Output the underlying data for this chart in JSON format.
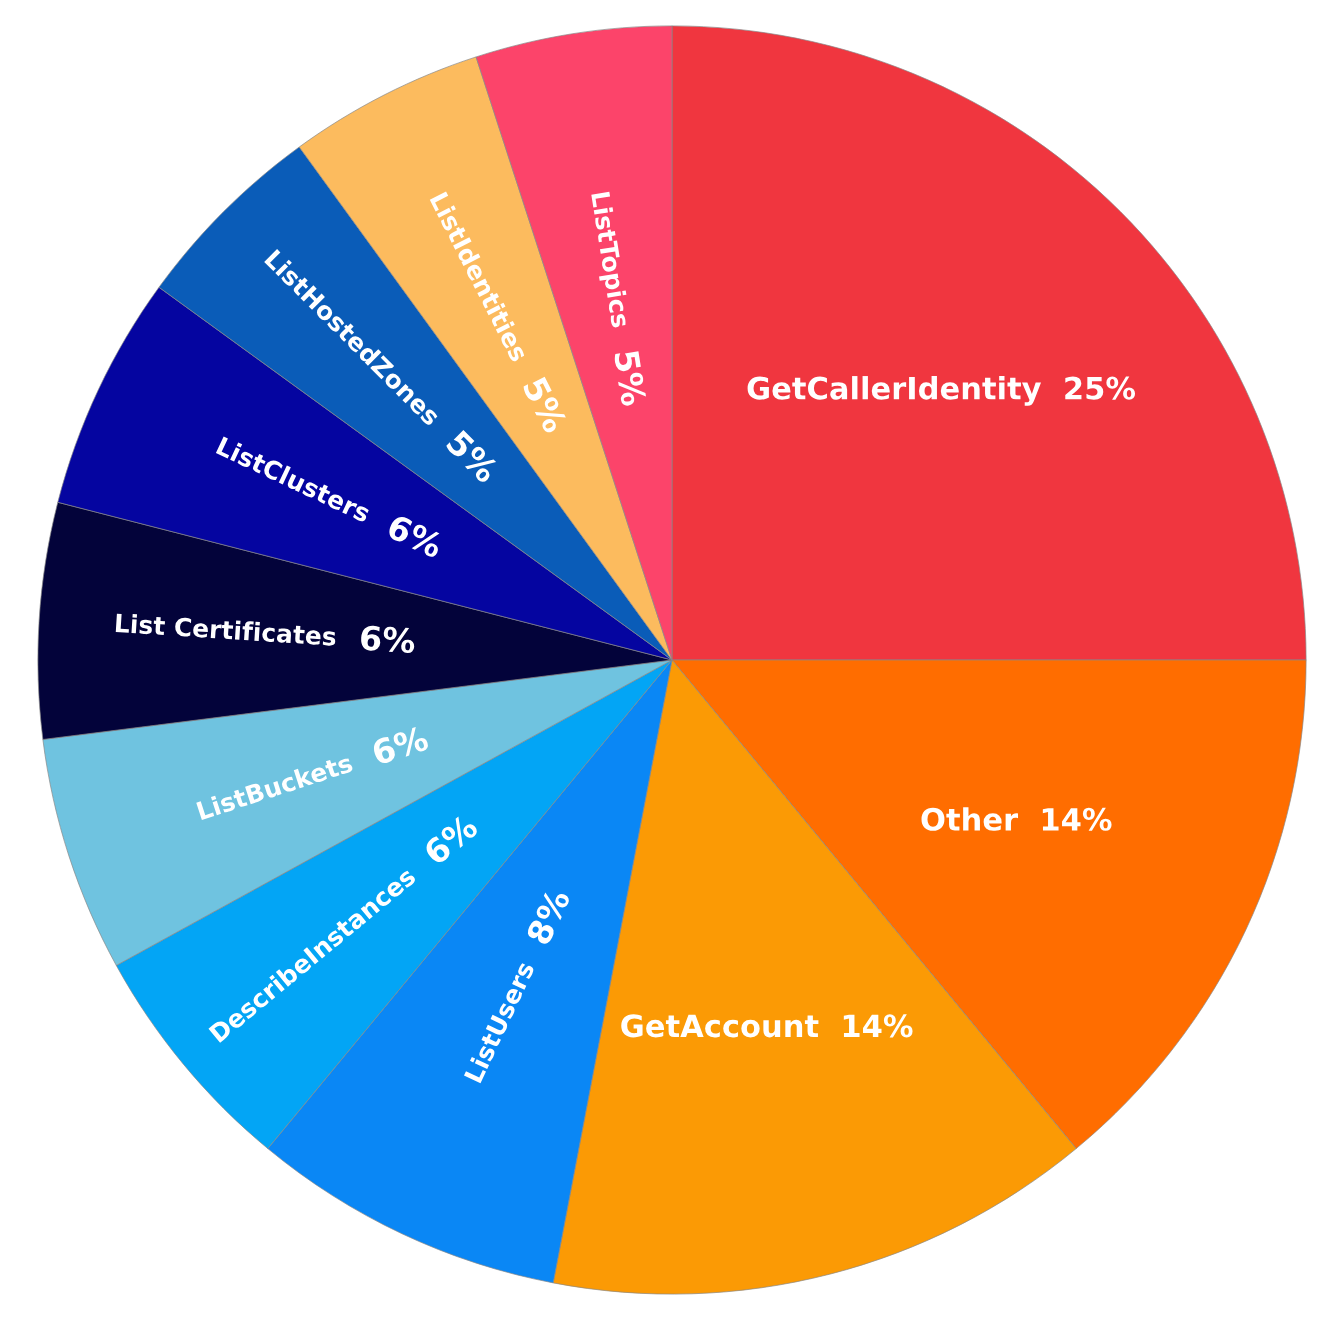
{
  "chart_data": {
    "type": "pie",
    "categories": [
      "GetCallerIdentity",
      "Other",
      "GetAccount",
      "ListUsers",
      "DescribeInstances",
      "ListBuckets",
      "List Certificates",
      "ListClusters",
      "ListHostedZones",
      "ListIdentities",
      "ListTopics"
    ],
    "values": [
      25,
      14,
      14,
      8,
      6,
      6,
      6,
      6,
      5,
      5,
      5
    ],
    "value_labels": [
      "25%",
      "14%",
      "14%",
      "8%",
      "6%",
      "6%",
      "6%",
      "6%",
      "5%",
      "5%",
      "5%"
    ],
    "colors": [
      "#f0363f",
      "#ff6d00",
      "#fb9a05",
      "#0a87f5",
      "#03a5f5",
      "#6fc3e0",
      "#03033a",
      "#0505a0",
      "#0a5cb8",
      "#fcbb5e",
      "#fc446a"
    ]
  }
}
